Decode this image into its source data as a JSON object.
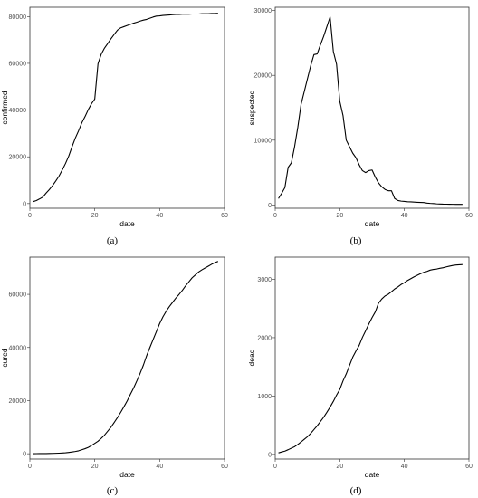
{
  "figure": {
    "panel_labels": [
      "(a)",
      "(b)",
      "(c)",
      "(d)"
    ]
  },
  "chart_data": [
    {
      "type": "line",
      "panel": "(a)",
      "xlabel": "date",
      "ylabel": "confirmed",
      "xlim": [
        0,
        60
      ],
      "ylim": [
        -2000,
        84000
      ],
      "xticks": [
        0,
        20,
        40,
        60
      ],
      "yticks": [
        0,
        20000,
        40000,
        60000,
        80000
      ],
      "x": [
        1,
        2,
        3,
        4,
        5,
        6,
        7,
        8,
        9,
        10,
        11,
        12,
        13,
        14,
        15,
        16,
        17,
        18,
        19,
        20,
        21,
        22,
        23,
        24,
        25,
        26,
        27,
        28,
        29,
        30,
        31,
        32,
        33,
        34,
        35,
        36,
        37,
        38,
        39,
        40,
        41,
        42,
        43,
        44,
        45,
        46,
        47,
        48,
        49,
        50,
        51,
        52,
        53,
        54,
        55,
        56,
        57,
        58
      ],
      "y": [
        830,
        1290,
        2000,
        2800,
        4500,
        6000,
        7700,
        9700,
        11800,
        14400,
        17200,
        20400,
        24300,
        28000,
        31100,
        34500,
        37200,
        40200,
        42700,
        44700,
        59800,
        63900,
        66500,
        68500,
        70500,
        72400,
        74200,
        75200,
        75700,
        76200,
        76700,
        77200,
        77600,
        78100,
        78500,
        78800,
        79300,
        79800,
        80200,
        80300,
        80500,
        80600,
        80700,
        80800,
        80900,
        80900,
        81000,
        81000,
        81000,
        81100,
        81100,
        81100,
        81200,
        81200,
        81200,
        81300,
        81300,
        81400
      ]
    },
    {
      "type": "line",
      "panel": "(b)",
      "xlabel": "date",
      "ylabel": "suspected",
      "xlim": [
        0,
        60
      ],
      "ylim": [
        -500,
        30500
      ],
      "xticks": [
        0,
        20,
        40,
        60
      ],
      "yticks": [
        0,
        10000,
        20000,
        30000
      ],
      "x": [
        1,
        2,
        3,
        4,
        5,
        6,
        7,
        8,
        9,
        10,
        11,
        12,
        13,
        14,
        15,
        16,
        17,
        18,
        19,
        20,
        21,
        22,
        23,
        24,
        25,
        26,
        27,
        28,
        29,
        30,
        31,
        32,
        33,
        34,
        35,
        36,
        37,
        38,
        39,
        40,
        41,
        42,
        43,
        44,
        45,
        46,
        47,
        48,
        49,
        50,
        51,
        52,
        53,
        54,
        55,
        56,
        57,
        58
      ],
      "y": [
        1000,
        1800,
        2700,
        5800,
        6500,
        9000,
        12000,
        15500,
        17500,
        19500,
        21500,
        23200,
        23300,
        24700,
        26000,
        27500,
        29000,
        23700,
        21700,
        16000,
        13800,
        10000,
        9000,
        8000,
        7300,
        6200,
        5300,
        5000,
        5300,
        5400,
        4300,
        3400,
        2800,
        2400,
        2200,
        2200,
        1000,
        700,
        600,
        550,
        500,
        480,
        450,
        420,
        400,
        380,
        300,
        250,
        220,
        180,
        160,
        140,
        130,
        120,
        110,
        100,
        100,
        100
      ]
    },
    {
      "type": "line",
      "panel": "(c)",
      "xlabel": "date",
      "ylabel": "cured",
      "xlim": [
        0,
        60
      ],
      "ylim": [
        -2000,
        74000
      ],
      "xticks": [
        0,
        20,
        40,
        60
      ],
      "yticks": [
        0,
        20000,
        40000,
        60000
      ],
      "x": [
        1,
        2,
        3,
        4,
        5,
        6,
        7,
        8,
        9,
        10,
        11,
        12,
        13,
        14,
        15,
        16,
        17,
        18,
        19,
        20,
        21,
        22,
        23,
        24,
        25,
        26,
        27,
        28,
        29,
        30,
        31,
        32,
        33,
        34,
        35,
        36,
        37,
        38,
        39,
        40,
        41,
        42,
        43,
        44,
        45,
        46,
        47,
        48,
        49,
        50,
        51,
        52,
        53,
        54,
        55,
        56,
        57,
        58
      ],
      "y": [
        30,
        40,
        50,
        60,
        80,
        100,
        130,
        170,
        220,
        290,
        380,
        500,
        650,
        850,
        1100,
        1500,
        1900,
        2400,
        3100,
        3900,
        4700,
        5800,
        7000,
        8500,
        10000,
        11800,
        13600,
        15600,
        17700,
        19900,
        22400,
        24800,
        27500,
        30300,
        33400,
        36900,
        40000,
        43000,
        46000,
        49000,
        51500,
        53600,
        55400,
        57000,
        58600,
        60000,
        61500,
        63200,
        64700,
        66200,
        67300,
        68400,
        69200,
        69900,
        70600,
        71300,
        71900,
        72400
      ]
    },
    {
      "type": "line",
      "panel": "(d)",
      "xlabel": "date",
      "ylabel": "dead",
      "xlim": [
        0,
        60
      ],
      "ylim": [
        -80,
        3380
      ],
      "xticks": [
        0,
        20,
        40,
        60
      ],
      "yticks": [
        0,
        1000,
        2000,
        3000
      ],
      "x": [
        1,
        2,
        3,
        4,
        5,
        6,
        7,
        8,
        9,
        10,
        11,
        12,
        13,
        14,
        15,
        16,
        17,
        18,
        19,
        20,
        21,
        22,
        23,
        24,
        25,
        26,
        27,
        28,
        29,
        30,
        31,
        32,
        33,
        34,
        35,
        36,
        37,
        38,
        39,
        40,
        41,
        42,
        43,
        44,
        45,
        46,
        47,
        48,
        49,
        50,
        51,
        52,
        53,
        54,
        55,
        56,
        57,
        58
      ],
      "y": [
        26,
        41,
        56,
        80,
        106,
        132,
        170,
        213,
        259,
        304,
        361,
        425,
        490,
        563,
        637,
        722,
        811,
        908,
        1016,
        1113,
        1259,
        1380,
        1523,
        1665,
        1770,
        1868,
        2004,
        2118,
        2236,
        2345,
        2442,
        2592,
        2663,
        2715,
        2744,
        2788,
        2835,
        2870,
        2912,
        2943,
        2981,
        3012,
        3042,
        3070,
        3097,
        3119,
        3136,
        3158,
        3169,
        3176,
        3189,
        3199,
        3213,
        3226,
        3237,
        3245,
        3249,
        3253
      ]
    }
  ]
}
